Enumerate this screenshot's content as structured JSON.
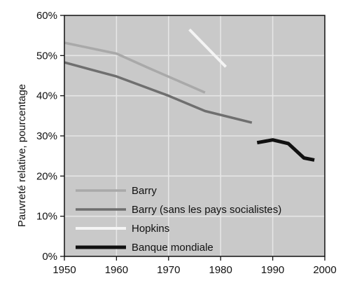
{
  "chart_data": {
    "type": "line",
    "ylabel": "Pauvreté relative, pourcentage",
    "xlim": [
      1950,
      2000
    ],
    "ylim": [
      0,
      60
    ],
    "x_ticks": [
      1950,
      1960,
      1970,
      1980,
      1990,
      2000
    ],
    "y_ticks": [
      {
        "value": 0,
        "label": "0%"
      },
      {
        "value": 10,
        "label": "10%"
      },
      {
        "value": 20,
        "label": "20%"
      },
      {
        "value": 30,
        "label": "30%"
      },
      {
        "value": 40,
        "label": "40%"
      },
      {
        "value": 50,
        "label": "50%"
      },
      {
        "value": 60,
        "label": "60%"
      }
    ],
    "grid": true,
    "legend_position": "bottom-left",
    "series": [
      {
        "name": "Barry",
        "color": "#a9a9a9",
        "points": [
          [
            1950,
            53.2
          ],
          [
            1960,
            50.5
          ],
          [
            1966,
            47.0
          ],
          [
            1977,
            40.8
          ]
        ]
      },
      {
        "name": "Barry (sans les pays socialistes)",
        "color": "#6f6f6f",
        "points": [
          [
            1950,
            48.3
          ],
          [
            1960,
            44.8
          ],
          [
            1970,
            40.0
          ],
          [
            1977,
            36.2
          ],
          [
            1986,
            33.3
          ]
        ]
      },
      {
        "name": "Hopkins",
        "color": "#f4f4f4",
        "points": [
          [
            1974,
            56.5
          ],
          [
            1981,
            47.2
          ]
        ]
      },
      {
        "name": "Banque mondiale",
        "color": "#111111",
        "points": [
          [
            1987,
            28.3
          ],
          [
            1990,
            29.0
          ],
          [
            1993,
            28.1
          ],
          [
            1996,
            24.5
          ],
          [
            1998,
            24.0
          ]
        ]
      }
    ]
  }
}
